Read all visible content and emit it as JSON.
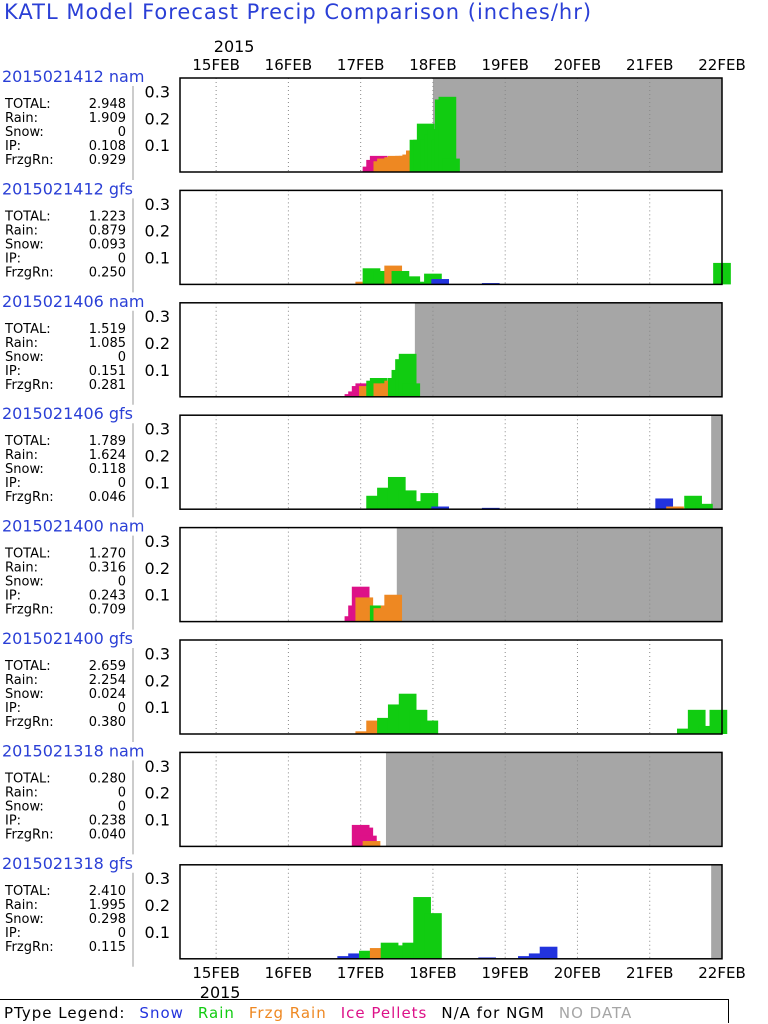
{
  "title": "KATL Model Forecast Precip Comparison (inches/hr)",
  "colors": {
    "snow": "#2233dd",
    "rain": "#11cc11",
    "frzg_rain": "#ee8822",
    "ice_pellets": "#dd1188",
    "no_data": "#a6a6a6",
    "run_label": "#2a3fd6"
  },
  "time_axis": {
    "year_label": "2015",
    "day_labels": [
      "15FEB",
      "16FEB",
      "17FEB",
      "18FEB",
      "19FEB",
      "20FEB",
      "21FEB",
      "22FEB"
    ]
  },
  "stat_labels": {
    "total": "TOTAL:",
    "rain": "Rain:",
    "snow": "Snow:",
    "ip": "IP:",
    "frzgrn": "FrzgRn:"
  },
  "legend": {
    "ptype_label": "PType Legend:",
    "snow": "Snow",
    "rain": "Rain",
    "frzg_rain": "Frzg Rain",
    "ice_pellets": "Ice Pellets",
    "na_note": "N/A for NGM",
    "no_data": "NO DATA"
  },
  "chart_data": {
    "type": "bar",
    "title": "KATL Model Forecast Precip Comparison (inches/hr)",
    "x_axis_range": [
      "2015-02-14 12Z",
      "2015-02-22 00Z"
    ],
    "ylim": [
      0,
      0.35
    ],
    "y_ticks": [
      "0.1",
      "0.2",
      "0.3"
    ],
    "grid": "vertical dotted lines at each day",
    "panels": [
      {
        "run": "2015021412",
        "model": "nam",
        "stats": {
          "total": "2.948",
          "rain": "1.909",
          "snow": "0",
          "ip": "0.108",
          "frzgrn": "0.929"
        },
        "no_data_from_day": 3.0,
        "bars": [
          [
            2.15,
            0.02,
            "ice_pellets"
          ],
          [
            2.2,
            0.045,
            "ice_pellets"
          ],
          [
            2.25,
            0.06,
            "ice_pellets"
          ],
          [
            2.3,
            0.04,
            "frzg_rain"
          ],
          [
            2.35,
            0.05,
            "frzg_rain"
          ],
          [
            2.4,
            0.05,
            "frzg_rain"
          ],
          [
            2.45,
            0.055,
            "frzg_rain"
          ],
          [
            2.5,
            0.06,
            "frzg_rain"
          ],
          [
            2.55,
            0.055,
            "frzg_rain"
          ],
          [
            2.6,
            0.06,
            "frzg_rain"
          ],
          [
            2.65,
            0.06,
            "frzg_rain"
          ],
          [
            2.7,
            0.065,
            "frzg_rain"
          ],
          [
            2.75,
            0.08,
            "frzg_rain"
          ],
          [
            2.8,
            0.12,
            "rain"
          ],
          [
            2.85,
            0.12,
            "rain"
          ],
          [
            2.9,
            0.18,
            "rain"
          ],
          [
            2.95,
            0.12,
            "rain"
          ],
          [
            3.0,
            0.14,
            "rain"
          ],
          [
            3.05,
            0.16,
            "rain"
          ],
          [
            3.1,
            0.12,
            "rain"
          ],
          [
            3.15,
            0.27,
            "rain"
          ],
          [
            3.2,
            0.28,
            "rain"
          ],
          [
            3.25,
            0.05,
            "rain"
          ]
        ]
      },
      {
        "run": "2015021412",
        "model": "gfs",
        "stats": {
          "total": "1.223",
          "rain": "0.879",
          "snow": "0.093",
          "ip": "0",
          "frzgrn": "0.250"
        },
        "no_data_from_day": null,
        "bars": [
          [
            2.05,
            0.01,
            "frzg_rain"
          ],
          [
            2.15,
            0.06,
            "rain"
          ],
          [
            2.3,
            0.05,
            "rain"
          ],
          [
            2.45,
            0.07,
            "frzg_rain"
          ],
          [
            2.55,
            0.05,
            "rain"
          ],
          [
            2.7,
            0.03,
            "rain"
          ],
          [
            2.85,
            0.01,
            "rain"
          ],
          [
            3.0,
            0.04,
            "rain"
          ],
          [
            3.1,
            0.02,
            "snow"
          ],
          [
            3.8,
            0.005,
            "snow"
          ],
          [
            7.0,
            0.08,
            "rain"
          ]
        ]
      },
      {
        "run": "2015021406",
        "model": "nam",
        "stats": {
          "total": "1.519",
          "rain": "1.085",
          "snow": "0",
          "ip": "0.151",
          "frzgrn": "0.281"
        },
        "no_data_from_day": 2.75,
        "bars": [
          [
            1.9,
            0.01,
            "ice_pellets"
          ],
          [
            1.95,
            0.02,
            "ice_pellets"
          ],
          [
            2.0,
            0.04,
            "ice_pellets"
          ],
          [
            2.05,
            0.05,
            "ice_pellets"
          ],
          [
            2.1,
            0.04,
            "frzg_rain"
          ],
          [
            2.15,
            0.03,
            "frzg_rain"
          ],
          [
            2.2,
            0.06,
            "rain"
          ],
          [
            2.25,
            0.07,
            "rain"
          ],
          [
            2.3,
            0.05,
            "frzg_rain"
          ],
          [
            2.35,
            0.04,
            "frzg_rain"
          ],
          [
            2.4,
            0.05,
            "frzg_rain"
          ],
          [
            2.45,
            0.06,
            "frzg_rain"
          ],
          [
            2.5,
            0.07,
            "rain"
          ],
          [
            2.55,
            0.1,
            "rain"
          ],
          [
            2.6,
            0.14,
            "rain"
          ],
          [
            2.65,
            0.16,
            "rain"
          ],
          [
            2.7,
            0.05,
            "rain"
          ]
        ]
      },
      {
        "run": "2015021406",
        "model": "gfs",
        "stats": {
          "total": "1.789",
          "rain": "1.624",
          "snow": "0.118",
          "ip": "0",
          "frzgrn": "0.046"
        },
        "no_data_from_day": 6.85,
        "bars": [
          [
            2.2,
            0.05,
            "rain"
          ],
          [
            2.35,
            0.08,
            "rain"
          ],
          [
            2.5,
            0.12,
            "rain"
          ],
          [
            2.65,
            0.07,
            "rain"
          ],
          [
            2.8,
            0.03,
            "rain"
          ],
          [
            2.95,
            0.06,
            "rain"
          ],
          [
            3.1,
            0.01,
            "snow"
          ],
          [
            3.8,
            0.005,
            "snow"
          ],
          [
            6.2,
            0.04,
            "snow"
          ],
          [
            6.35,
            0.01,
            "frzg_rain"
          ],
          [
            6.6,
            0.05,
            "rain"
          ],
          [
            6.75,
            0.02,
            "rain"
          ]
        ]
      },
      {
        "run": "2015021400",
        "model": "nam",
        "stats": {
          "total": "1.270",
          "rain": "0.316",
          "snow": "0",
          "ip": "0.243",
          "frzgrn": "0.709"
        },
        "no_data_from_day": 2.5,
        "bars": [
          [
            1.9,
            0.02,
            "ice_pellets"
          ],
          [
            1.95,
            0.06,
            "ice_pellets"
          ],
          [
            2.0,
            0.13,
            "ice_pellets"
          ],
          [
            2.05,
            0.09,
            "frzg_rain"
          ],
          [
            2.1,
            0.06,
            "frzg_rain"
          ],
          [
            2.15,
            0.05,
            "frzg_rain"
          ],
          [
            2.2,
            0.05,
            "frzg_rain"
          ],
          [
            2.25,
            0.06,
            "rain"
          ],
          [
            2.3,
            0.05,
            "frzg_rain"
          ],
          [
            2.35,
            0.04,
            "frzg_rain"
          ],
          [
            2.4,
            0.06,
            "frzg_rain"
          ],
          [
            2.45,
            0.1,
            "frzg_rain"
          ]
        ]
      },
      {
        "run": "2015021400",
        "model": "gfs",
        "stats": {
          "total": "2.659",
          "rain": "2.254",
          "snow": "0.024",
          "ip": "0",
          "frzgrn": "0.380"
        },
        "no_data_from_day": 7.1,
        "bars": [
          [
            2.05,
            0.01,
            "frzg_rain"
          ],
          [
            2.2,
            0.05,
            "frzg_rain"
          ],
          [
            2.35,
            0.06,
            "rain"
          ],
          [
            2.5,
            0.11,
            "rain"
          ],
          [
            2.65,
            0.15,
            "rain"
          ],
          [
            2.8,
            0.09,
            "rain"
          ],
          [
            2.95,
            0.05,
            "rain"
          ],
          [
            6.5,
            0.02,
            "rain"
          ],
          [
            6.65,
            0.09,
            "rain"
          ],
          [
            6.8,
            0.03,
            "rain"
          ],
          [
            6.95,
            0.09,
            "rain"
          ]
        ]
      },
      {
        "run": "2015021318",
        "model": "nam",
        "stats": {
          "total": "0.280",
          "rain": "0",
          "snow": "0",
          "ip": "0.238",
          "frzgrn": "0.040"
        },
        "no_data_from_day": 2.35,
        "bars": [
          [
            2.0,
            0.08,
            "ice_pellets"
          ],
          [
            2.05,
            0.07,
            "ice_pellets"
          ],
          [
            2.1,
            0.04,
            "ice_pellets"
          ],
          [
            2.15,
            0.02,
            "frzg_rain"
          ]
        ]
      },
      {
        "run": "2015021318",
        "model": "gfs",
        "stats": {
          "total": "2.410",
          "rain": "1.995",
          "snow": "0.298",
          "ip": "0",
          "frzgrn": "0.115"
        },
        "no_data_from_day": 6.85,
        "bars": [
          [
            1.8,
            0.01,
            "snow"
          ],
          [
            1.95,
            0.02,
            "snow"
          ],
          [
            2.1,
            0.03,
            "rain"
          ],
          [
            2.25,
            0.04,
            "frzg_rain"
          ],
          [
            2.4,
            0.06,
            "rain"
          ],
          [
            2.55,
            0.05,
            "rain"
          ],
          [
            2.7,
            0.06,
            "rain"
          ],
          [
            2.85,
            0.23,
            "rain"
          ],
          [
            3.0,
            0.17,
            "rain"
          ],
          [
            3.75,
            0.005,
            "snow"
          ],
          [
            4.3,
            0.01,
            "snow"
          ],
          [
            4.45,
            0.02,
            "snow"
          ],
          [
            4.6,
            0.045,
            "snow"
          ]
        ]
      }
    ]
  }
}
